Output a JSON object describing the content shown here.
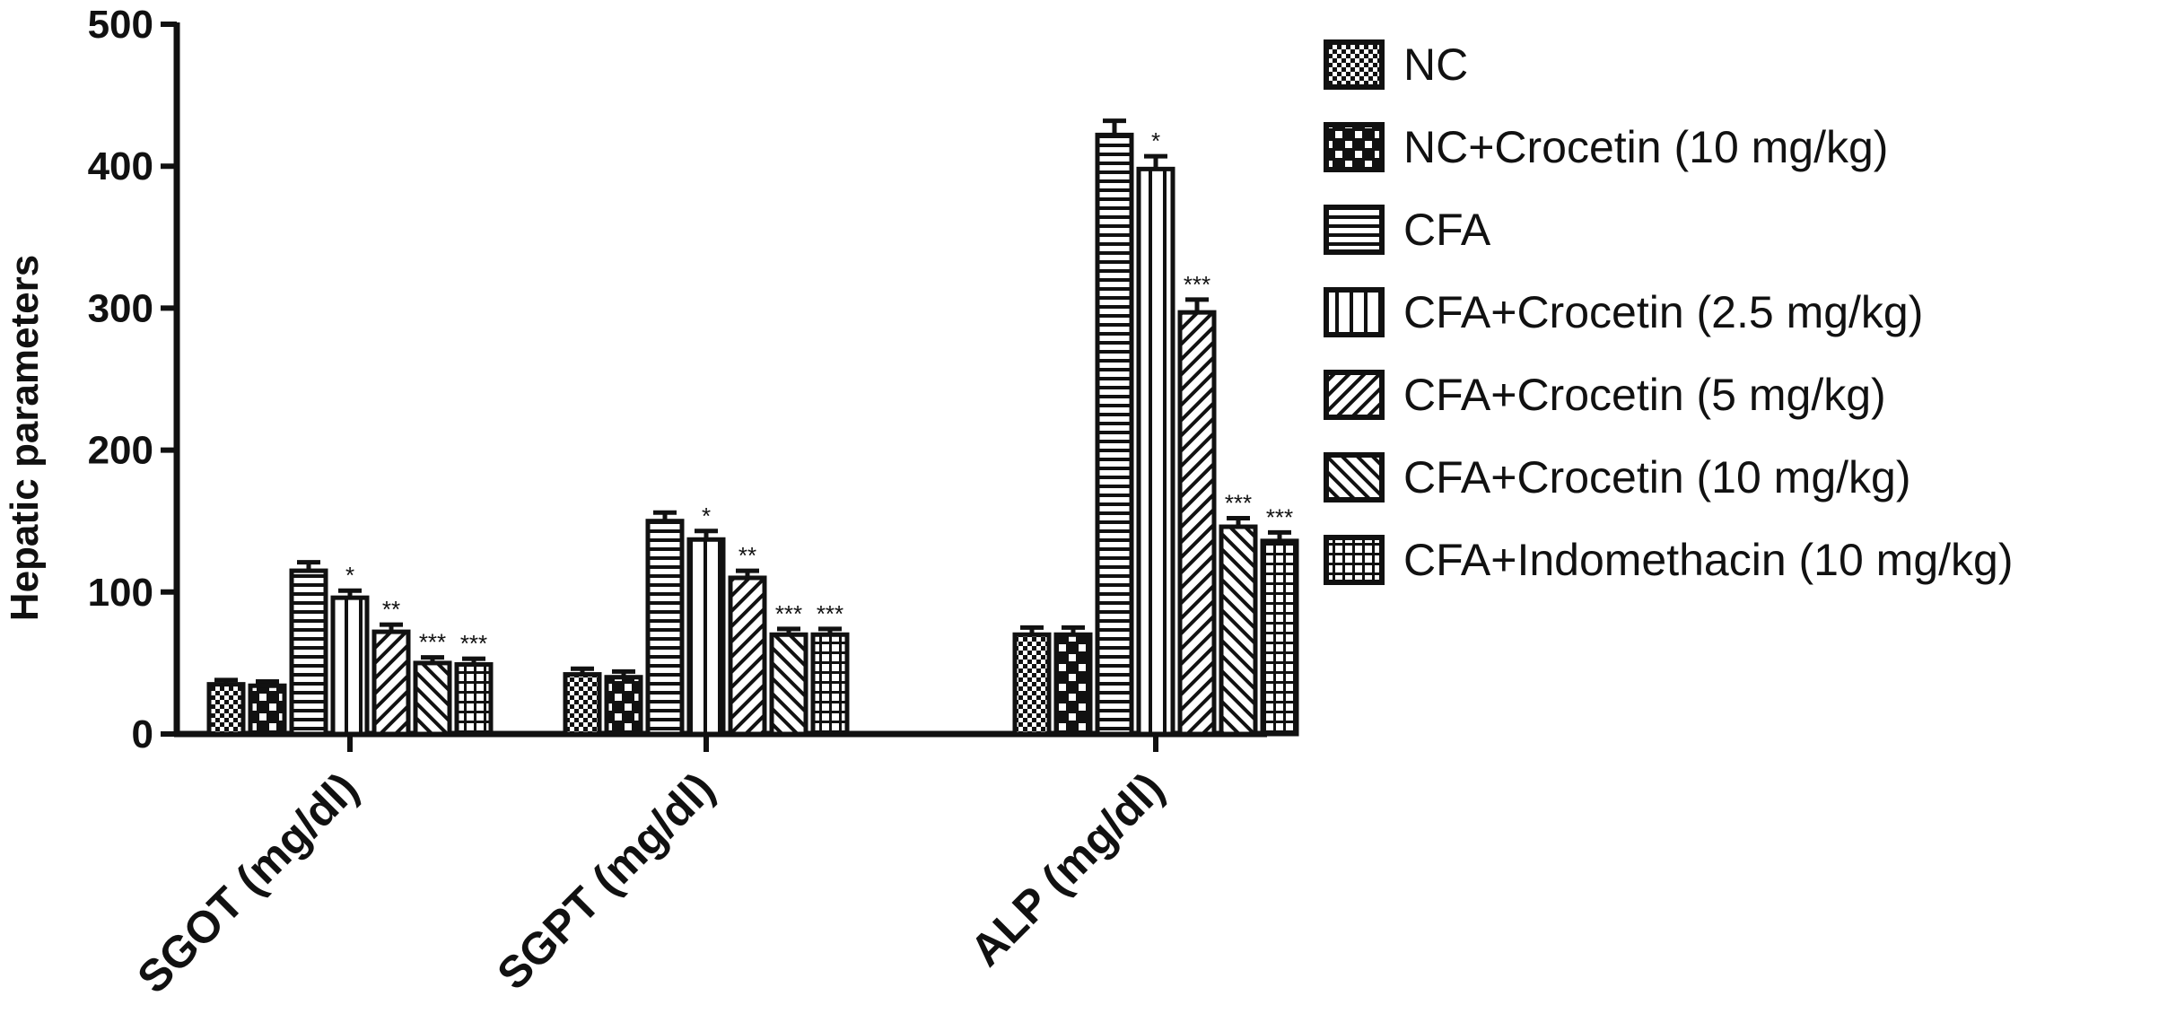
{
  "chart_data": {
    "type": "bar",
    "ylabel": "Hepatic parameters",
    "ylim": [
      0,
      500
    ],
    "yticks": [
      "0",
      "100",
      "200",
      "300",
      "400",
      "500"
    ],
    "categories": [
      "SGOT (mg/dl)",
      "SGPT (mg/dl)",
      "ALP (mg/dl)"
    ],
    "series": [
      {
        "name": "NC",
        "pattern": "checker",
        "values": [
          35,
          42,
          70
        ],
        "errors": [
          3,
          4,
          5
        ],
        "sig": [
          "",
          "",
          ""
        ]
      },
      {
        "name": "NC+Crocetin (10 mg/kg)",
        "pattern": "bigchecker",
        "values": [
          34,
          40,
          70
        ],
        "errors": [
          3,
          4,
          5
        ],
        "sig": [
          "",
          "",
          ""
        ]
      },
      {
        "name": "CFA",
        "pattern": "hlines",
        "values": [
          115,
          150,
          422
        ],
        "errors": [
          6,
          6,
          10
        ],
        "sig": [
          "",
          "",
          ""
        ]
      },
      {
        "name": "CFA+Crocetin (2.5 mg/kg)",
        "pattern": "vlines",
        "values": [
          96,
          137,
          398
        ],
        "errors": [
          5,
          6,
          9
        ],
        "sig": [
          "*",
          "*",
          "*"
        ]
      },
      {
        "name": "CFA+Crocetin (5 mg/kg)",
        "pattern": "fdiag",
        "values": [
          72,
          110,
          297
        ],
        "errors": [
          5,
          5,
          9
        ],
        "sig": [
          "**",
          "**",
          "***"
        ]
      },
      {
        "name": "CFA+Crocetin (10 mg/kg)",
        "pattern": "bdiag",
        "values": [
          50,
          70,
          146
        ],
        "errors": [
          4,
          4,
          6
        ],
        "sig": [
          "***",
          "***",
          "***"
        ]
      },
      {
        "name": "CFA+Indomethacin (10 mg/kg)",
        "pattern": "grid",
        "values": [
          49,
          70,
          136
        ],
        "errors": [
          4,
          4,
          6
        ],
        "sig": [
          "***",
          "***",
          "***"
        ]
      }
    ],
    "grid": false,
    "legend": "right"
  },
  "colors": {
    "ink": "#111111",
    "background": "#ffffff"
  }
}
